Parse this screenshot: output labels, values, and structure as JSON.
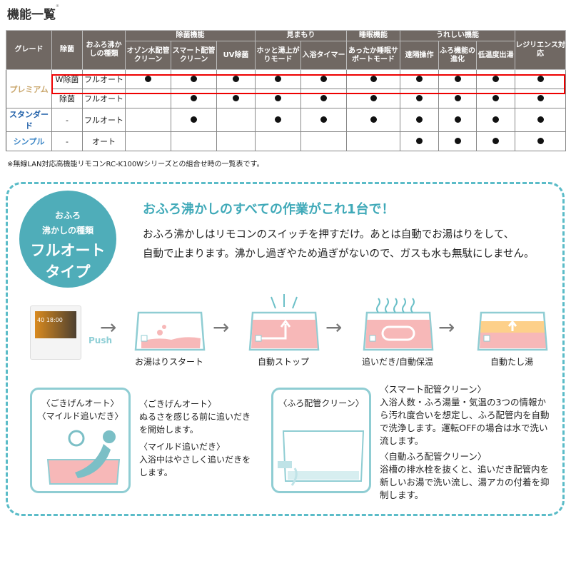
{
  "title": "機能一覧",
  "title_mark": "®",
  "table": {
    "headers": {
      "grade": "グレード",
      "jokin": "除菌",
      "type": "おふろ沸かしの種類",
      "groups": [
        {
          "label": "除菌機能",
          "cols": [
            "オゾン水配管クリーン",
            "スマート配管クリーン",
            "UV除菌"
          ]
        },
        {
          "label": "見まもり",
          "cols": [
            "ホッと湯上がりモード",
            "入浴タイマー"
          ]
        },
        {
          "label": "睡眠機能",
          "cols": [
            "あったか睡眠サポートモード"
          ]
        },
        {
          "label": "うれしい機能",
          "cols": [
            "遠隔操作",
            "ふろ機能の進化",
            "低温度出湯"
          ]
        }
      ],
      "resilience": "レジリエンス対応"
    },
    "rows": [
      {
        "grade": "プレミアム",
        "jokin": "W除菌",
        "type": "フルオート",
        "features": [
          1,
          1,
          1,
          1,
          1,
          1,
          1,
          1,
          1,
          1
        ],
        "highlighted": true
      },
      {
        "grade": "",
        "jokin": "除菌",
        "type": "フルオート",
        "features": [
          0,
          1,
          1,
          1,
          1,
          1,
          1,
          1,
          1,
          1
        ]
      },
      {
        "grade": "スタンダード",
        "jokin": "-",
        "type": "フルオート",
        "features": [
          0,
          1,
          0,
          1,
          1,
          1,
          1,
          1,
          1,
          1
        ]
      },
      {
        "grade": "シンプル",
        "jokin": "-",
        "type": "オート",
        "features": [
          0,
          0,
          0,
          0,
          0,
          0,
          1,
          1,
          1,
          1
        ]
      }
    ],
    "highlight_color": "#e00000"
  },
  "note": "※無線LAN対応高機能リモコンRC-K100Wシリーズとの組合せ時の一覧表です。",
  "badge": {
    "line1": "おふろ",
    "line2": "沸かしの種類",
    "line3": "フルオート",
    "line4": "タイプ",
    "color": "#4fadb9"
  },
  "headline": "おふろ沸かしのすべての作業がこれ1台で！",
  "paragraph": [
    "おふろ沸かしはリモコンのスイッチを押すだけ。あとは自動でお湯はりをして、",
    "自動で止まります。沸かし過ぎやため過ぎがないので、ガスも水も無駄にしません。"
  ],
  "remote": {
    "temp": "40",
    "time": "18:00",
    "push": "Push"
  },
  "steps": [
    "お湯はりスタート",
    "自動ストップ",
    "追いだき/自動保温",
    "自動たし湯"
  ],
  "left_box": {
    "title1": "〈ごきげんオート〉",
    "title2": "〈マイルド追いだき〉"
  },
  "left_text": [
    {
      "h": "〈ごきげんオート〉",
      "b": "ぬるさを感じる前に追いだきを開始します。"
    },
    {
      "h": "〈マイルド追いだき〉",
      "b": "入浴中はやさしく追いだきをします。"
    }
  ],
  "right_box": {
    "title": "〈ふろ配管クリーン〉"
  },
  "right_text": [
    {
      "h": "〈スマート配管クリーン〉",
      "b": "入浴人数・ふろ湯量・気温の3つの情報から汚れ度合いを想定し、ふろ配管内を自動で洗浄します。運転OFFの場合は水で洗い流します。"
    },
    {
      "h": "〈自動ふろ配管クリーン〉",
      "b": "浴槽の排水栓を抜くと、追いだき配管内を新しいお湯で洗い流し、湯アカの付着を抑制します。"
    }
  ],
  "accent": "#5bbcc8"
}
